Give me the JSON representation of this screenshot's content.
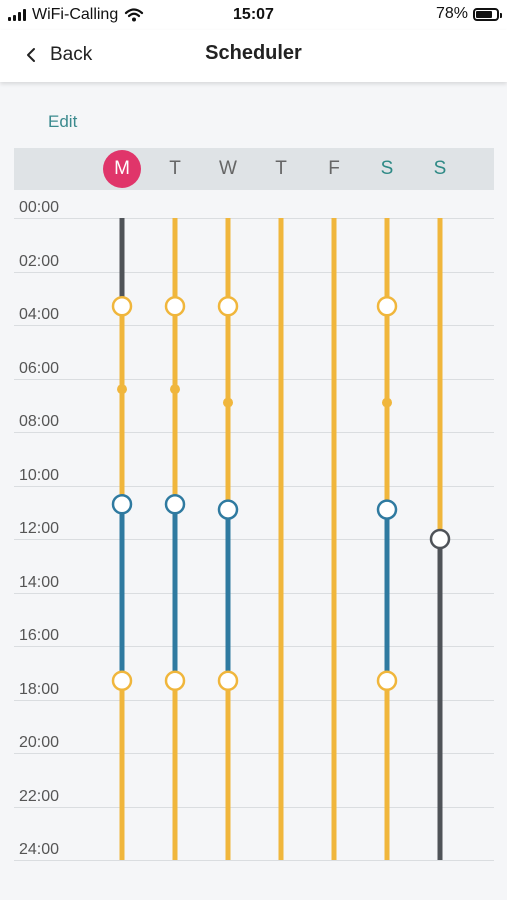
{
  "status_bar": {
    "carrier": "WiFi-Calling",
    "time": "15:07",
    "battery_text": "78%",
    "battery_level": 0.78
  },
  "nav": {
    "back_label": "Back",
    "title": "Scheduler"
  },
  "edit_label": "Edit",
  "days": [
    {
      "letter": "M",
      "active": true,
      "weekend": false
    },
    {
      "letter": "T",
      "active": false,
      "weekend": false
    },
    {
      "letter": "W",
      "active": false,
      "weekend": false
    },
    {
      "letter": "T",
      "active": false,
      "weekend": false
    },
    {
      "letter": "F",
      "active": false,
      "weekend": false
    },
    {
      "letter": "S",
      "active": false,
      "weekend": true
    },
    {
      "letter": "S",
      "active": false,
      "weekend": true
    }
  ],
  "hour_labels": [
    "00:00",
    "02:00",
    "04:00",
    "06:00",
    "08:00",
    "10:00",
    "12:00",
    "14:00",
    "16:00",
    "18:00",
    "20:00",
    "22:00",
    "24:00"
  ],
  "colors": {
    "comfort": "#f0b63c",
    "eco": "#2f7aa0",
    "off": "#4f5358",
    "active_day": "#e0356a",
    "accent": "#3b8a8e"
  },
  "schedule": [
    {
      "day": "M",
      "segments": [
        {
          "from": 0,
          "to": 3.3,
          "mode": "off"
        },
        {
          "from": 3.3,
          "to": 10.7,
          "mode": "comfort"
        },
        {
          "from": 10.7,
          "to": 17.3,
          "mode": "eco"
        },
        {
          "from": 17.3,
          "to": 24,
          "mode": "comfort"
        }
      ],
      "switch_points": [
        3.3,
        10.7,
        17.3
      ],
      "markers": [
        6.4
      ]
    },
    {
      "day": "T",
      "segments": [
        {
          "from": 0,
          "to": 10.7,
          "mode": "comfort"
        },
        {
          "from": 10.7,
          "to": 17.3,
          "mode": "eco"
        },
        {
          "from": 17.3,
          "to": 24,
          "mode": "comfort"
        }
      ],
      "switch_points": [
        3.3,
        10.7,
        17.3
      ],
      "markers": [
        6.4
      ]
    },
    {
      "day": "W",
      "segments": [
        {
          "from": 0,
          "to": 10.9,
          "mode": "comfort"
        },
        {
          "from": 10.9,
          "to": 17.3,
          "mode": "eco"
        },
        {
          "from": 17.3,
          "to": 24,
          "mode": "comfort"
        }
      ],
      "switch_points": [
        3.3,
        10.9,
        17.3
      ],
      "markers": [
        6.9
      ]
    },
    {
      "day": "T",
      "segments": [
        {
          "from": 0,
          "to": 24,
          "mode": "comfort"
        }
      ],
      "switch_points": [],
      "markers": []
    },
    {
      "day": "F",
      "segments": [
        {
          "from": 0,
          "to": 24,
          "mode": "comfort"
        }
      ],
      "switch_points": [],
      "markers": []
    },
    {
      "day": "S",
      "segments": [
        {
          "from": 0,
          "to": 10.9,
          "mode": "comfort"
        },
        {
          "from": 10.9,
          "to": 17.3,
          "mode": "eco"
        },
        {
          "from": 17.3,
          "to": 24,
          "mode": "comfort"
        }
      ],
      "switch_points": [
        3.3,
        10.9,
        17.3
      ],
      "markers": [
        6.9
      ]
    },
    {
      "day": "S",
      "segments": [
        {
          "from": 0,
          "to": 12,
          "mode": "comfort"
        },
        {
          "from": 12,
          "to": 24,
          "mode": "off"
        }
      ],
      "switch_points": [
        12
      ],
      "markers": []
    }
  ]
}
